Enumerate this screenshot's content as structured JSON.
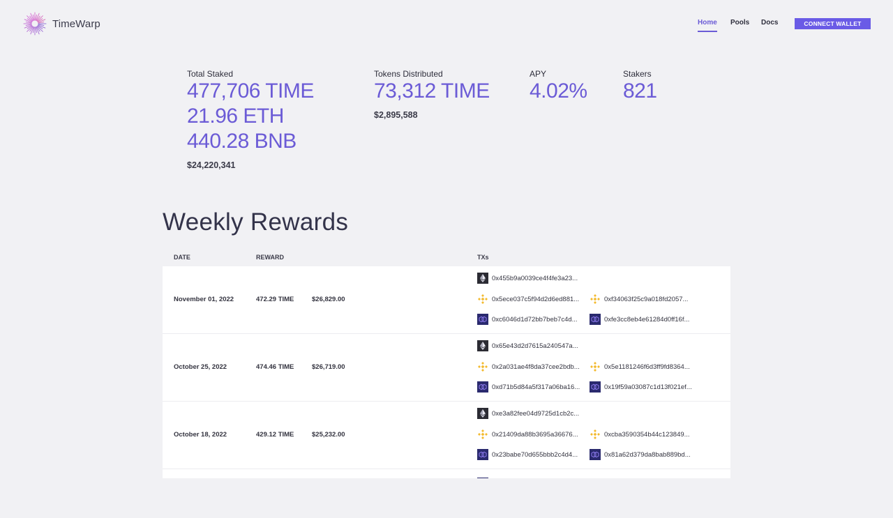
{
  "header": {
    "brand": "TimeWarp",
    "nav": {
      "home": "Home",
      "pools": "Pools",
      "docs": "Docs"
    },
    "connect_label": "CONNECT WALLET"
  },
  "stats": {
    "total_staked": {
      "label": "Total Staked",
      "values": [
        "477,706 TIME",
        "21.96 ETH",
        "440.28 BNB"
      ],
      "usd": "$24,220,341"
    },
    "tokens_distributed": {
      "label": "Tokens Distributed",
      "value": "73,312 TIME",
      "usd": "$2,895,588"
    },
    "apy": {
      "label": "APY",
      "value": "4.02%"
    },
    "stakers": {
      "label": "Stakers",
      "value": "821"
    }
  },
  "rewards": {
    "title": "Weekly Rewards",
    "columns": {
      "date": "DATE",
      "reward": "REWARD",
      "txs": "TXs"
    },
    "rows": [
      {
        "date": "November 01, 2022",
        "reward_time": "472.29 TIME",
        "reward_usd": "$26,829.00",
        "eth_tx": "0x455b9a0039ce4f4fe3a23...",
        "bnb_tx_1": "0x5ece037c5f94d2d6ed881...",
        "bnb_tx_2": "0xf34063f25c9a018fd2057...",
        "poly_tx_1": "0xc6046d1d72bb7beb7c4d...",
        "poly_tx_2": "0xfe3cc8eb4e61284d0ff16f..."
      },
      {
        "date": "October 25, 2022",
        "reward_time": "474.46 TIME",
        "reward_usd": "$26,719.00",
        "eth_tx": "0x65e43d2d7615a240547a...",
        "bnb_tx_1": "0x2a031ae4f8da37cee2bdb...",
        "bnb_tx_2": "0x5e1181246f6d3ff9fd8364...",
        "poly_tx_1": "0xd71b5d84a5f317a06ba16...",
        "poly_tx_2": "0x19f59a03087c1d13f021ef..."
      },
      {
        "date": "October 18, 2022",
        "reward_time": "429.12 TIME",
        "reward_usd": "$25,232.00",
        "eth_tx": "0xe3a82fee04d9725d1cb2c...",
        "bnb_tx_1": "0x21409da88b3695a36676...",
        "bnb_tx_2": "0xcba3590354b44c123849...",
        "poly_tx_1": "0x23babe70d655bbb2c4d4...",
        "poly_tx_2": "0x81a62d379da8bab889bd..."
      }
    ]
  },
  "colors": {
    "accent": "#6b5bd6",
    "button": "#6a5be6",
    "background": "#f1f1f4",
    "bnb": "#f3ba2f",
    "polygon_bg": "#2a2a6e"
  },
  "icons": {
    "logo": "radial-burst-logo-icon",
    "eth": "ethereum-icon",
    "bnb": "bnb-icon",
    "poly": "polygon-icon"
  }
}
